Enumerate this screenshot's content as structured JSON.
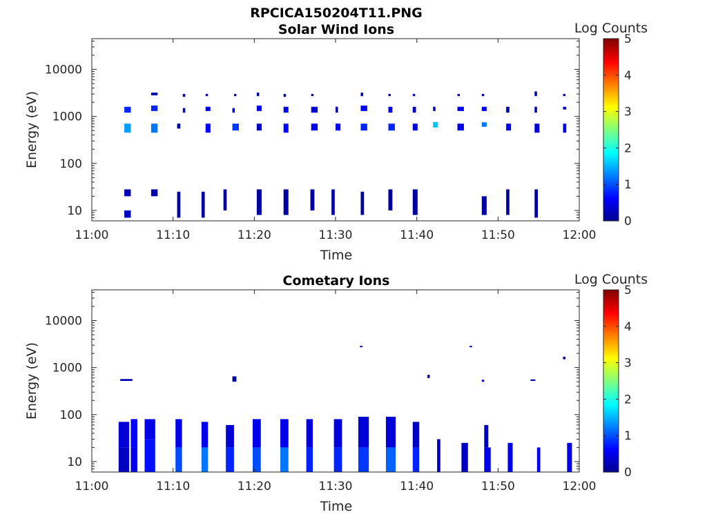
{
  "figure_title": "RPCICA150204T11.PNG",
  "colormap": [
    "#00008f",
    "#0000ff",
    "#0080ff",
    "#00ffff",
    "#80ff80",
    "#ffff00",
    "#ff8000",
    "#ff0000",
    "#800000"
  ],
  "chart_data": [
    {
      "type": "heatmap",
      "title": "Solar Wind Ions",
      "xlabel": "Time",
      "ylabel": "Energy (eV)",
      "x_ticks": [
        "11:00",
        "11:10",
        "11:20",
        "11:30",
        "11:40",
        "11:50",
        "12:00"
      ],
      "x_range": [
        0,
        60
      ],
      "y_scale": "log",
      "y_range": [
        6,
        45000
      ],
      "y_ticks": [
        10,
        100,
        1000,
        10000
      ],
      "y_tick_labels": [
        "10",
        "100",
        "1000",
        "10000"
      ],
      "colorbar": {
        "label": "Log Counts",
        "range": [
          0,
          5
        ],
        "ticks": [
          "0",
          "1",
          "2",
          "3",
          "4",
          "5"
        ]
      },
      "cells": [
        [
          4.0,
          0.8,
          7,
          10,
          0.3
        ],
        [
          4.0,
          0.8,
          20,
          28,
          0.2
        ],
        [
          4.0,
          0.8,
          450,
          700,
          1.4
        ],
        [
          4.0,
          0.8,
          1200,
          1600,
          0.8
        ],
        [
          7.3,
          0.8,
          20,
          28,
          0.2
        ],
        [
          7.3,
          0.8,
          450,
          700,
          1.2
        ],
        [
          7.3,
          0.8,
          1300,
          1700,
          0.8
        ],
        [
          7.3,
          0.8,
          2800,
          3200,
          0.2
        ],
        [
          10.5,
          0.4,
          7,
          25,
          0.1
        ],
        [
          10.5,
          0.4,
          550,
          700,
          0.1
        ],
        [
          11.2,
          0.3,
          1200,
          1500,
          0.3
        ],
        [
          11.2,
          0.3,
          2600,
          3000,
          0.1
        ],
        [
          13.5,
          0.4,
          7,
          25,
          0.1
        ],
        [
          14.0,
          0.6,
          450,
          700,
          0.6
        ],
        [
          14.0,
          0.6,
          1300,
          1600,
          0.5
        ],
        [
          14.0,
          0.3,
          2700,
          3000,
          0.1
        ],
        [
          16.2,
          0.4,
          10,
          28,
          0.1
        ],
        [
          17.3,
          0.8,
          500,
          700,
          0.9
        ],
        [
          17.3,
          0.3,
          1200,
          1500,
          0.4
        ],
        [
          17.5,
          0.3,
          2700,
          3000,
          0.1
        ],
        [
          20.3,
          0.6,
          8,
          28,
          0.1
        ],
        [
          20.3,
          0.6,
          1300,
          1700,
          0.5
        ],
        [
          20.3,
          0.6,
          500,
          700,
          0.3
        ],
        [
          20.3,
          0.3,
          2700,
          3200,
          0.1
        ],
        [
          23.6,
          0.6,
          8,
          28,
          0.1
        ],
        [
          23.6,
          0.6,
          450,
          700,
          0.6
        ],
        [
          23.6,
          0.6,
          1200,
          1600,
          0.5
        ],
        [
          23.6,
          0.3,
          2600,
          3000,
          0.1
        ],
        [
          26.9,
          0.5,
          10,
          28,
          0.1
        ],
        [
          27.0,
          0.8,
          500,
          700,
          0.6
        ],
        [
          27.0,
          0.8,
          1200,
          1600,
          0.4
        ],
        [
          27.0,
          0.3,
          2700,
          3000,
          0.1
        ],
        [
          29.5,
          0.4,
          8,
          28,
          0.1
        ],
        [
          30.0,
          0.6,
          500,
          700,
          0.5
        ],
        [
          30.0,
          0.3,
          1200,
          1600,
          0.1
        ],
        [
          33.1,
          0.4,
          8,
          25,
          0.1
        ],
        [
          33.1,
          0.8,
          500,
          700,
          0.8
        ],
        [
          33.1,
          0.8,
          1300,
          1700,
          0.6
        ],
        [
          33.1,
          0.3,
          2700,
          3200,
          0.1
        ],
        [
          36.5,
          0.5,
          10,
          28,
          0.1
        ],
        [
          36.5,
          0.8,
          500,
          700,
          0.8
        ],
        [
          36.5,
          0.5,
          1200,
          1600,
          0.5
        ],
        [
          36.5,
          0.3,
          2700,
          3000,
          0.1
        ],
        [
          39.5,
          0.6,
          8,
          28,
          0.1
        ],
        [
          39.5,
          0.6,
          500,
          700,
          0.4
        ],
        [
          39.5,
          0.4,
          1200,
          1600,
          0.2
        ],
        [
          39.5,
          0.3,
          2700,
          3000,
          0.1
        ],
        [
          42.0,
          0.6,
          580,
          760,
          1.6
        ],
        [
          42.0,
          0.3,
          1300,
          1600,
          0.2
        ],
        [
          45.0,
          0.8,
          500,
          700,
          0.5
        ],
        [
          45.0,
          0.8,
          1300,
          1600,
          0.6
        ],
        [
          45.0,
          0.3,
          2700,
          3000,
          0.1
        ],
        [
          48.0,
          0.6,
          8,
          20,
          0.1
        ],
        [
          48.0,
          0.6,
          600,
          750,
          1.2
        ],
        [
          48.0,
          0.6,
          1300,
          1600,
          0.5
        ],
        [
          48.0,
          0.3,
          2700,
          3000,
          0.1
        ],
        [
          51.0,
          0.4,
          8,
          28,
          0.1
        ],
        [
          51.0,
          0.6,
          500,
          700,
          0.6
        ],
        [
          51.0,
          0.4,
          1200,
          1600,
          0.2
        ],
        [
          54.5,
          0.4,
          7,
          28,
          0.1
        ],
        [
          54.5,
          0.6,
          450,
          700,
          0.4
        ],
        [
          54.5,
          0.3,
          1200,
          1600,
          0.1
        ],
        [
          54.5,
          0.3,
          2700,
          3400,
          0.1
        ],
        [
          58.0,
          0.4,
          450,
          700,
          0.6
        ],
        [
          58.0,
          0.4,
          1400,
          1600,
          0.3
        ],
        [
          58.0,
          0.3,
          2700,
          3000,
          0.1
        ]
      ]
    },
    {
      "type": "heatmap",
      "title": "Cometary Ions",
      "xlabel": "Time",
      "ylabel": "Energy (eV)",
      "x_ticks": [
        "11:00",
        "11:10",
        "11:20",
        "11:30",
        "11:40",
        "11:50",
        "12:00"
      ],
      "x_range": [
        0,
        60
      ],
      "y_scale": "log",
      "y_range": [
        6,
        45000
      ],
      "y_ticks": [
        10,
        100,
        1000,
        10000
      ],
      "y_tick_labels": [
        "10",
        "100",
        "1000",
        "10000"
      ],
      "colorbar": {
        "label": "Log Counts",
        "range": [
          0,
          5
        ],
        "ticks": [
          "0",
          "1",
          "2",
          "3",
          "4",
          "5"
        ]
      },
      "cells": [
        [
          3.3,
          1.3,
          6,
          20,
          0.3
        ],
        [
          3.3,
          1.3,
          20,
          70,
          0.4
        ],
        [
          3.5,
          1.5,
          520,
          570,
          0.2
        ],
        [
          4.8,
          0.8,
          6,
          20,
          0.5
        ],
        [
          4.8,
          0.8,
          20,
          80,
          0.6
        ],
        [
          6.5,
          1.3,
          6,
          30,
          0.7
        ],
        [
          6.5,
          1.3,
          30,
          80,
          0.5
        ],
        [
          10.3,
          0.8,
          6,
          20,
          1.0
        ],
        [
          10.3,
          0.8,
          20,
          80,
          0.5
        ],
        [
          13.5,
          0.8,
          6,
          20,
          1.2
        ],
        [
          13.5,
          0.8,
          20,
          70,
          0.5
        ],
        [
          16.5,
          1.0,
          6,
          20,
          0.8
        ],
        [
          16.5,
          1.0,
          20,
          60,
          0.4
        ],
        [
          19.8,
          1.0,
          6,
          20,
          1.0
        ],
        [
          19.8,
          1.0,
          20,
          80,
          0.5
        ],
        [
          23.2,
          1.0,
          6,
          20,
          1.2
        ],
        [
          23.2,
          1.0,
          20,
          80,
          0.5
        ],
        [
          26.4,
          0.8,
          6,
          20,
          0.8
        ],
        [
          26.4,
          0.8,
          20,
          80,
          0.4
        ],
        [
          29.8,
          1.0,
          6,
          20,
          0.8
        ],
        [
          29.8,
          1.0,
          20,
          80,
          0.4
        ],
        [
          32.8,
          1.3,
          6,
          20,
          0.9
        ],
        [
          32.8,
          1.3,
          20,
          90,
          0.4
        ],
        [
          36.2,
          1.2,
          6,
          20,
          1.1
        ],
        [
          36.2,
          1.2,
          20,
          90,
          0.4
        ],
        [
          39.5,
          0.8,
          6,
          20,
          0.8
        ],
        [
          39.5,
          0.8,
          20,
          70,
          0.3
        ],
        [
          42.5,
          0.4,
          6,
          30,
          0.3
        ],
        [
          45.5,
          0.8,
          6,
          25,
          0.3
        ],
        [
          48.3,
          0.8,
          6,
          20,
          0.5
        ],
        [
          48.3,
          0.5,
          20,
          60,
          0.2
        ],
        [
          51.2,
          0.6,
          6,
          25,
          0.5
        ],
        [
          54.8,
          0.4,
          6,
          20,
          0.6
        ],
        [
          58.5,
          0.6,
          6,
          25,
          0.5
        ],
        [
          17.3,
          0.5,
          500,
          650,
          0.1
        ],
        [
          33.0,
          0.3,
          2700,
          2900,
          0.1
        ],
        [
          46.5,
          0.3,
          2700,
          2900,
          0.1
        ],
        [
          58.0,
          0.3,
          1500,
          1700,
          0.1
        ],
        [
          41.3,
          0.3,
          600,
          700,
          0.1
        ],
        [
          48.0,
          0.3,
          500,
          550,
          0.1
        ],
        [
          54.0,
          0.6,
          520,
          560,
          0.1
        ]
      ]
    }
  ]
}
